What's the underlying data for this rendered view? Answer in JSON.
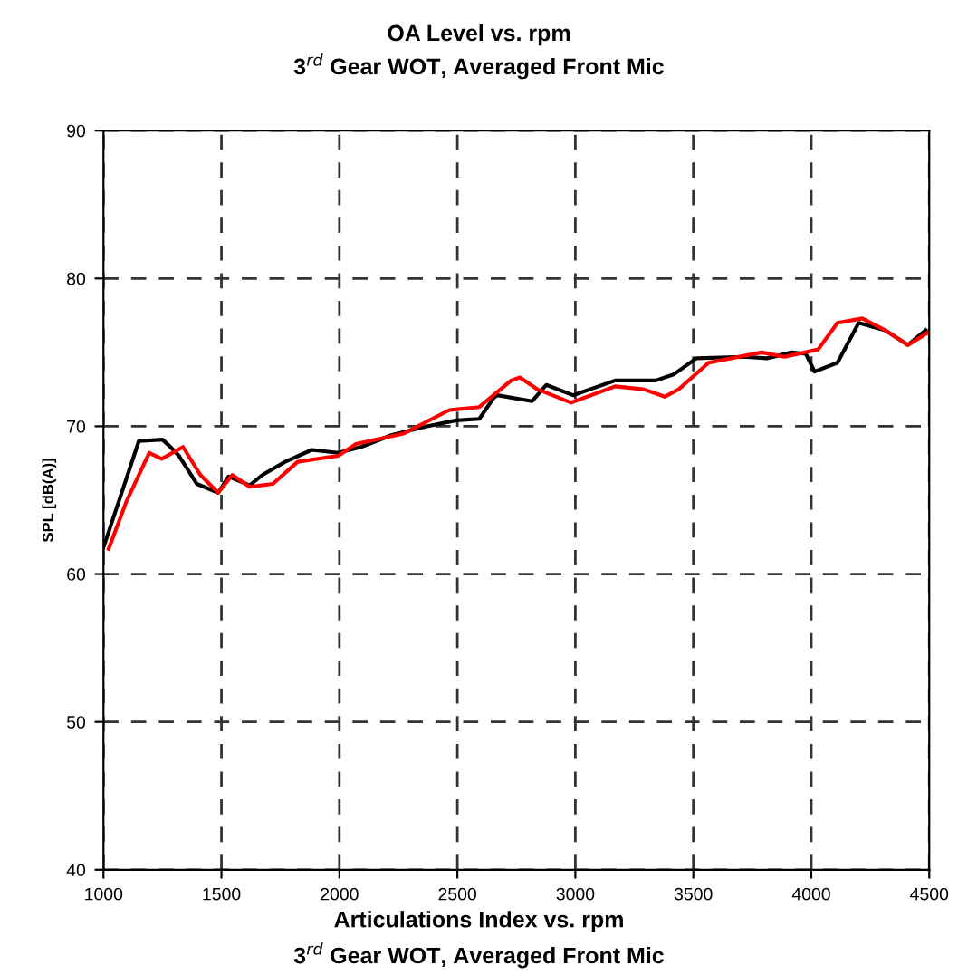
{
  "chart_data": {
    "type": "line",
    "title": "OA Level vs. rpm",
    "subtitle": "3$^{rd}$ Gear WOT, Averaged Front Mic",
    "ylabel": "SPL [dB(A)]",
    "annotations": [
      "Articulations Index vs. rpm",
      "3$^{rd}$ Gear WOT, Averaged Front Mic"
    ],
    "xlim": [
      1000,
      4500
    ],
    "xticks": [
      1000,
      1500,
      2000,
      2500,
      3000,
      3500,
      4000,
      4500
    ],
    "ylim": [
      40,
      90
    ],
    "yticks": [
      40,
      50,
      60,
      70,
      80,
      90
    ],
    "grid": true,
    "line_style": "solid",
    "series": [
      {
        "color": "#000000",
        "x": [
          1000,
          1150,
          1250,
          1284,
          1320,
          1396,
          1486,
          1530,
          1620,
          1673,
          1770,
          1883,
          1995,
          2092,
          2220,
          2370,
          2496,
          2593,
          2653,
          2668,
          2817,
          2877,
          2990,
          3169,
          3341,
          3416,
          3513,
          3715,
          3812,
          3917,
          3977,
          4014,
          4111,
          4201,
          4313,
          4410,
          4485
        ],
        "values": [
          61.8,
          69.0,
          69.1,
          68.6,
          68.0,
          66.1,
          65.5,
          66.6,
          66.0,
          66.7,
          67.6,
          68.4,
          68.2,
          68.6,
          69.4,
          70.0,
          70.4,
          70.5,
          71.9,
          72.1,
          71.7,
          72.8,
          72.1,
          73.1,
          73.1,
          73.5,
          74.6,
          74.7,
          74.6,
          75.0,
          74.9,
          73.7,
          74.3,
          77.0,
          76.5,
          75.5,
          76.5
        ]
      },
      {
        "color": "#ff0000",
        "x": [
          1022,
          1097,
          1194,
          1247,
          1337,
          1411,
          1486,
          1546,
          1620,
          1718,
          1823,
          1995,
          2070,
          2271,
          2466,
          2593,
          2728,
          2765,
          2840,
          2982,
          3169,
          3289,
          3379,
          3438,
          3565,
          3790,
          3887,
          4029,
          4111,
          4216,
          4313,
          4410,
          4500
        ],
        "values": [
          61.7,
          64.9,
          68.2,
          67.8,
          68.6,
          66.7,
          65.5,
          66.7,
          65.9,
          66.1,
          67.6,
          68.0,
          68.8,
          69.5,
          71.1,
          71.3,
          73.1,
          73.3,
          72.5,
          71.6,
          72.7,
          72.5,
          72.0,
          72.5,
          74.3,
          75.0,
          74.7,
          75.2,
          77.0,
          77.3,
          76.5,
          75.5,
          76.4
        ]
      }
    ]
  }
}
